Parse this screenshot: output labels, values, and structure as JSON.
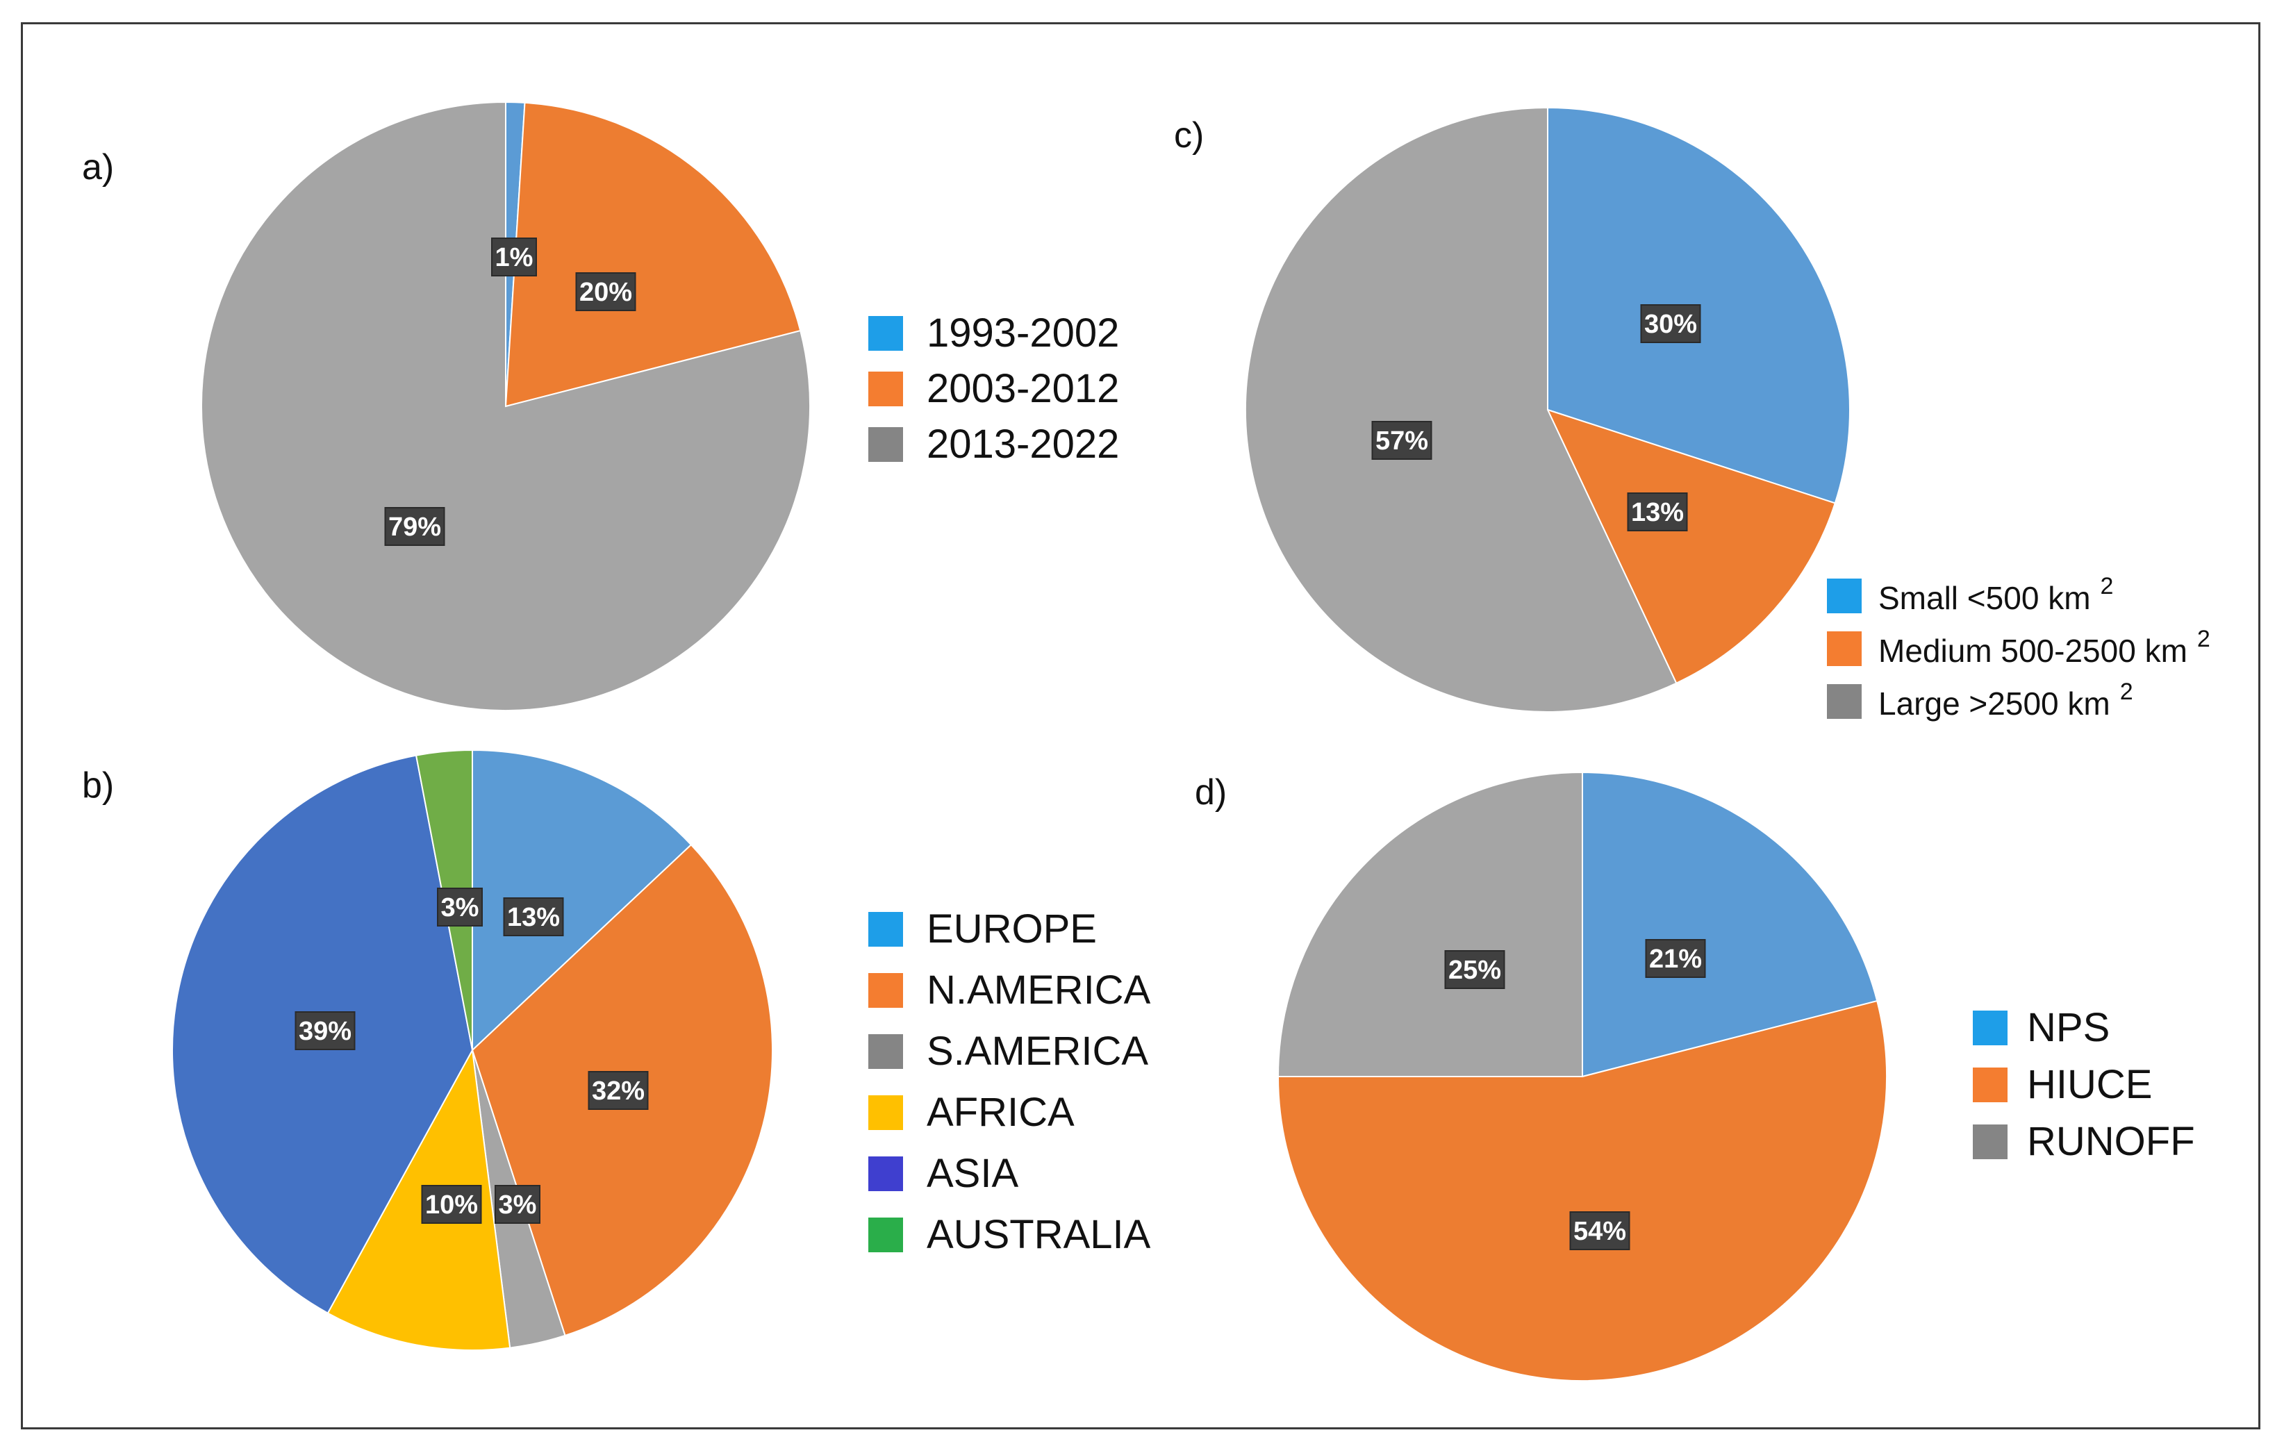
{
  "chart_data": [
    {
      "type": "pie",
      "panel_label": "a)",
      "title": "",
      "slices": [
        {
          "label": "1993-2002",
          "value": 1,
          "data_label": "1%",
          "color": "#5b9bd5"
        },
        {
          "label": "2003-2012",
          "value": 20,
          "data_label": "20%",
          "color": "#ed7d31"
        },
        {
          "label": "2013-2022",
          "value": 79,
          "data_label": "79%",
          "color": "#a5a5a5"
        }
      ],
      "legend": [
        {
          "text": "1993-2002",
          "sup": "",
          "color": "#1e9ee8"
        },
        {
          "text": "2003-2012",
          "sup": "",
          "color": "#f47d30"
        },
        {
          "text": "2013-2022",
          "sup": "",
          "color": "#858585"
        }
      ],
      "legend_position": "right"
    },
    {
      "type": "pie",
      "panel_label": "b)",
      "title": "",
      "slices": [
        {
          "label": "EUROPE",
          "value": 13,
          "data_label": "13%",
          "color": "#5b9bd5"
        },
        {
          "label": "N.AMERICA",
          "value": 32,
          "data_label": "32%",
          "color": "#ed7d31"
        },
        {
          "label": "S.AMERICA",
          "value": 3,
          "data_label": "3%",
          "color": "#a5a5a5"
        },
        {
          "label": "AFRICA",
          "value": 10,
          "data_label": "10%",
          "color": "#ffc000"
        },
        {
          "label": "ASIA",
          "value": 39,
          "data_label": "39%",
          "color": "#4472c4"
        },
        {
          "label": "AUSTRALIA",
          "value": 3,
          "data_label": "3%",
          "color": "#70ad47"
        }
      ],
      "legend": [
        {
          "text": "EUROPE",
          "sup": "",
          "color": "#1e9ee8"
        },
        {
          "text": "N.AMERICA",
          "sup": "",
          "color": "#f47d30"
        },
        {
          "text": "S.AMERICA",
          "sup": "",
          "color": "#858585"
        },
        {
          "text": "AFRICA",
          "sup": "",
          "color": "#ffc000"
        },
        {
          "text": "ASIA",
          "sup": "",
          "color": "#3f3fcf"
        },
        {
          "text": "AUSTRALIA",
          "sup": "",
          "color": "#2aae4a"
        }
      ],
      "legend_position": "right"
    },
    {
      "type": "pie",
      "panel_label": "c)",
      "title": "",
      "slices": [
        {
          "label": "Small <500 km 2",
          "value": 30,
          "data_label": "30%",
          "color": "#5b9bd5"
        },
        {
          "label": "Medium 500-2500 km 2",
          "value": 13,
          "data_label": "13%",
          "color": "#ed7d31"
        },
        {
          "label": "Large >2500 km 2",
          "value": 57,
          "data_label": "57%",
          "color": "#a5a5a5"
        }
      ],
      "legend": [
        {
          "text": "Small <500  km",
          "sup": "2",
          "color": "#1e9ee8"
        },
        {
          "text": "Medium 500-2500  km",
          "sup": "2",
          "color": "#f47d30"
        },
        {
          "text": "Large >2500  km",
          "sup": "2",
          "color": "#858585"
        }
      ],
      "legend_position": "bottom-right"
    },
    {
      "type": "pie",
      "panel_label": "d)",
      "title": "",
      "slices": [
        {
          "label": "NPS",
          "value": 21,
          "data_label": "21%",
          "color": "#5b9bd5"
        },
        {
          "label": "HIUCE",
          "value": 54,
          "data_label": "54%",
          "color": "#ed7d31"
        },
        {
          "label": "RUNOFF",
          "value": 25,
          "data_label": "25%",
          "color": "#a5a5a5"
        }
      ],
      "legend": [
        {
          "text": "NPS",
          "sup": "",
          "color": "#1e9ee8"
        },
        {
          "text": "HIUCE",
          "sup": "",
          "color": "#f47d30"
        },
        {
          "text": "RUNOFF",
          "sup": "",
          "color": "#858585"
        }
      ],
      "legend_position": "right"
    }
  ]
}
